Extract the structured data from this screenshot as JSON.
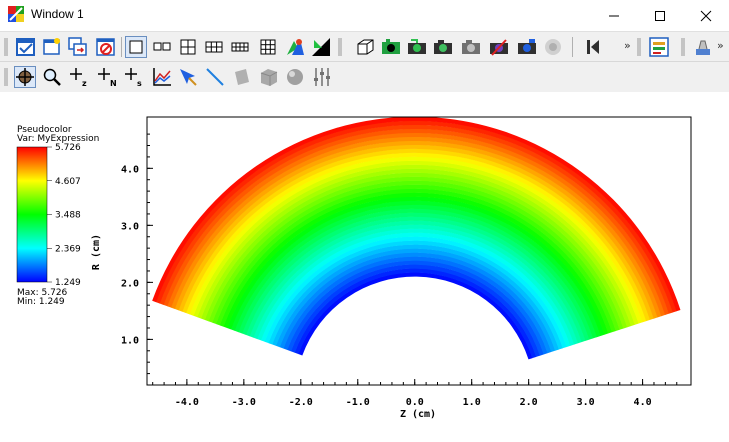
{
  "window": {
    "title": "Window 1",
    "controls": [
      "minimize",
      "maximize",
      "close"
    ]
  },
  "toolbar_row1": {
    "more_label_1": "»",
    "more_label_2": "»"
  },
  "legend": {
    "title": "Pseudocolor",
    "var_label": "Var: MyExpression",
    "ticks": [
      "5.726",
      "4.607",
      "3.488",
      "2.369",
      "1.249"
    ],
    "max_label": "Max:  5.726",
    "min_label": "Min:  1.249"
  },
  "chart_data": {
    "type": "pseudocolor-annulus",
    "xlabel": "Z (cm)",
    "ylabel": "R (cm)",
    "x_ticks": [
      -4.0,
      -3.0,
      -2.0,
      -1.0,
      0.0,
      1.0,
      2.0,
      3.0,
      4.0
    ],
    "x_tick_labels": [
      "-4.0",
      "-3.0",
      "-2.0",
      "-1.0",
      "0.0",
      "1.0",
      "2.0",
      "3.0",
      "4.0"
    ],
    "y_ticks": [
      1.0,
      2.0,
      3.0,
      4.0
    ],
    "y_tick_labels": [
      "1.0",
      "2.0",
      "3.0",
      "4.0"
    ],
    "xlim": [
      -4.7,
      4.85
    ],
    "ylim": [
      0.2,
      4.9
    ],
    "annulus": {
      "inner_radius": 2.1,
      "outer_radius": 4.9,
      "start_angle_deg": 18,
      "end_angle_deg": 160
    },
    "value_range": [
      1.249,
      5.726
    ],
    "colors": [
      "#0000ff",
      "#00ffff",
      "#00ff00",
      "#ffff00",
      "#ff0000"
    ]
  }
}
